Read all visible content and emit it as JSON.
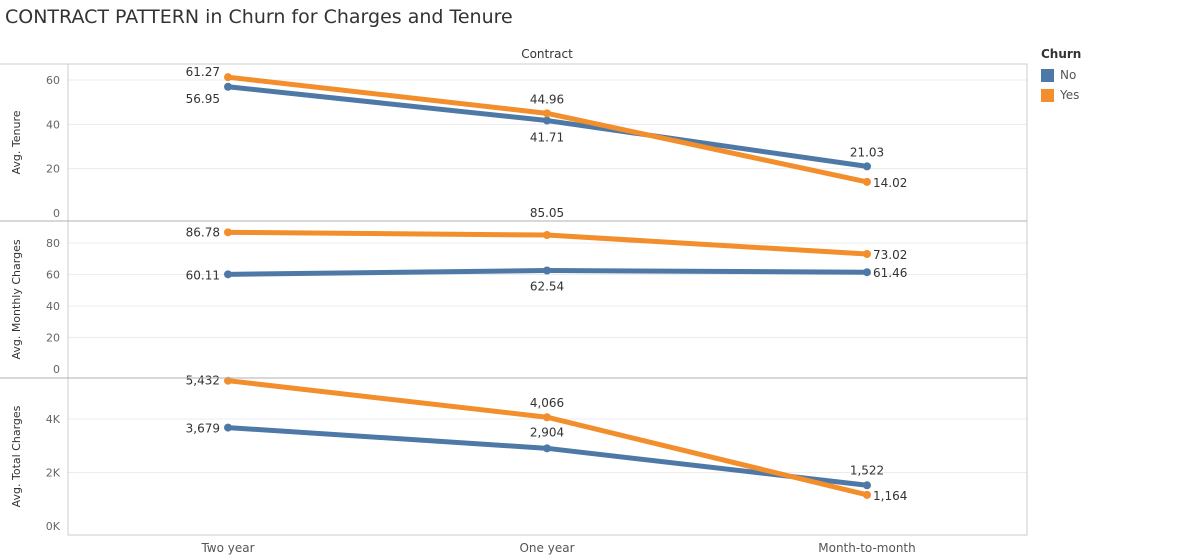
{
  "title": "CONTRACT PATTERN in Churn for Charges and Tenure",
  "chart_data": {
    "type": "line",
    "column_header": "Contract",
    "categories": [
      "Two year",
      "One year",
      "Month-to-month"
    ],
    "legend": {
      "title": "Churn",
      "items": [
        {
          "label": "No",
          "color": "#4e79a7"
        },
        {
          "label": "Yes",
          "color": "#f28e2b"
        }
      ],
      "placement": "right"
    },
    "grid": true,
    "panels": [
      {
        "ylabel": "Avg. Tenure",
        "ylim": [
          0,
          64
        ],
        "ticks": [
          {
            "v": 0,
            "label": "0"
          },
          {
            "v": 20,
            "label": "20"
          },
          {
            "v": 40,
            "label": "40"
          },
          {
            "v": 60,
            "label": "60"
          }
        ],
        "series": [
          {
            "name": "No",
            "color": "#4e79a7",
            "values": [
              56.95,
              41.71,
              21.03
            ],
            "labels": [
              "56.95",
              "41.71",
              "21.03"
            ]
          },
          {
            "name": "Yes",
            "color": "#f28e2b",
            "values": [
              61.27,
              44.96,
              14.02
            ],
            "labels": [
              "61.27",
              "44.96",
              "14.02"
            ]
          }
        ]
      },
      {
        "ylabel": "Avg. Monthly Charges",
        "ylim": [
          0,
          92
        ],
        "ticks": [
          {
            "v": 0,
            "label": "0"
          },
          {
            "v": 20,
            "label": "20"
          },
          {
            "v": 40,
            "label": "40"
          },
          {
            "v": 60,
            "label": "60"
          },
          {
            "v": 80,
            "label": "80"
          }
        ],
        "series": [
          {
            "name": "No",
            "color": "#4e79a7",
            "values": [
              60.11,
              62.54,
              61.46
            ],
            "labels": [
              "60.11",
              "62.54",
              "61.46"
            ]
          },
          {
            "name": "Yes",
            "color": "#f28e2b",
            "values": [
              86.78,
              85.05,
              73.02
            ],
            "labels": [
              "86.78",
              "85.05",
              "73.02"
            ]
          }
        ]
      },
      {
        "ylabel": "Avg. Total Charges",
        "ylim": [
          0,
          5500
        ],
        "ticks": [
          {
            "v": 0,
            "label": "0K"
          },
          {
            "v": 2000,
            "label": "2K"
          },
          {
            "v": 4000,
            "label": "4K"
          }
        ],
        "series": [
          {
            "name": "No",
            "color": "#4e79a7",
            "values": [
              3679,
              2904,
              1522
            ],
            "labels": [
              "3,679",
              "2,904",
              "1,522"
            ]
          },
          {
            "name": "Yes",
            "color": "#f28e2b",
            "values": [
              5432,
              4066,
              1164
            ],
            "labels": [
              "5,432",
              "4,066",
              "1,164"
            ]
          }
        ]
      }
    ]
  }
}
